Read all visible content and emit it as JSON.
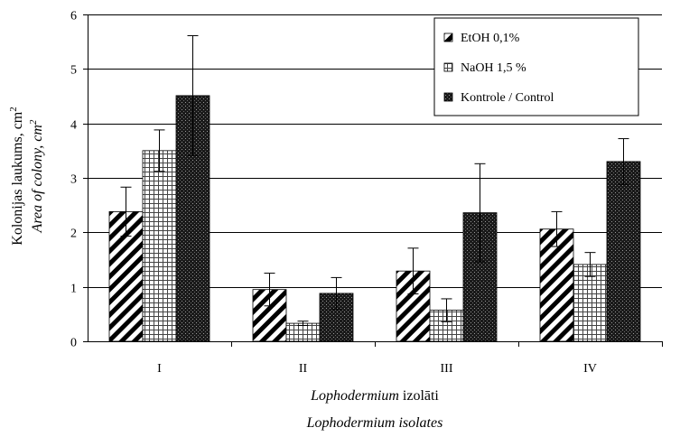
{
  "chart_data": {
    "type": "bar",
    "categories": [
      "I",
      "II",
      "III",
      "IV"
    ],
    "series": [
      {
        "name": "EtOH 0,1%",
        "pattern": "diagonal-stripes",
        "values": [
          2.38,
          0.95,
          1.29,
          2.06
        ],
        "errors": [
          0.45,
          0.3,
          0.42,
          0.32
        ]
      },
      {
        "name": "NaOH 1,5 %",
        "pattern": "grid",
        "values": [
          3.5,
          0.33,
          0.57,
          1.41
        ],
        "errors": [
          0.38,
          0.04,
          0.21,
          0.22
        ]
      },
      {
        "name": "Kontrole / Control",
        "pattern": "dark-dotted",
        "values": [
          4.51,
          0.88,
          2.36,
          3.3
        ],
        "errors": [
          1.1,
          0.29,
          0.9,
          0.42
        ]
      }
    ],
    "ylabel_line1": "Kolonijas laukums, cm",
    "ylabel_line1_sup": "2",
    "ylabel_line2": "Area of colony, cm",
    "ylabel_line2_sup": "2",
    "xlabel_line1_italic": "Lophodermium",
    "xlabel_line1_rest": " izolāti",
    "xlabel_line2": "Lophodermium isolates",
    "ylim": [
      0,
      6
    ],
    "yticks": [
      "0",
      "1",
      "2",
      "3",
      "4",
      "5",
      "6"
    ],
    "grid": true,
    "legend_position": "top-right"
  },
  "colors": {
    "axis": "#000000",
    "grid": "#000000",
    "dark_bar": "#1a1a1a",
    "background": "#ffffff"
  }
}
